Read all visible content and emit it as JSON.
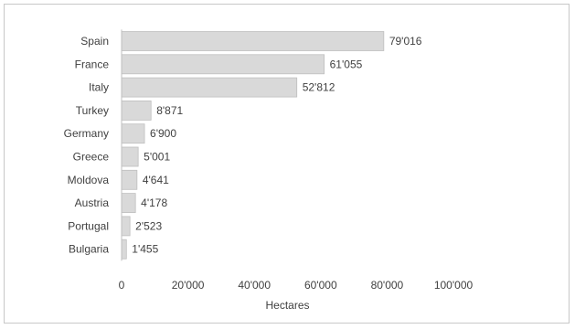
{
  "chart_data": {
    "type": "bar",
    "orientation": "horizontal",
    "categories": [
      "Spain",
      "France",
      "Italy",
      "Turkey",
      "Germany",
      "Greece",
      "Moldova",
      "Austria",
      "Portugal",
      "Bulgaria"
    ],
    "values": [
      79016,
      61055,
      52812,
      8871,
      6900,
      5001,
      4641,
      4178,
      2523,
      1455
    ],
    "value_labels": [
      "79'016",
      "61'055",
      "52'812",
      "8'871",
      "6'900",
      "5'001",
      "4'641",
      "4'178",
      "2'523",
      "1'455"
    ],
    "title": "",
    "xlabel": "Hectares",
    "ylabel": "",
    "xlim": [
      0,
      100000
    ],
    "x_ticks": [
      0,
      20000,
      40000,
      60000,
      80000,
      100000
    ],
    "x_tick_labels": [
      "0",
      "20'000",
      "40'000",
      "60'000",
      "80'000",
      "100'000"
    ],
    "grid": false,
    "legend": "none",
    "colors": {
      "bar_fill": "#d9d9d9",
      "bar_stroke": "#bfbfbf",
      "axis": "#bfbfbf",
      "text": "#404040"
    }
  }
}
